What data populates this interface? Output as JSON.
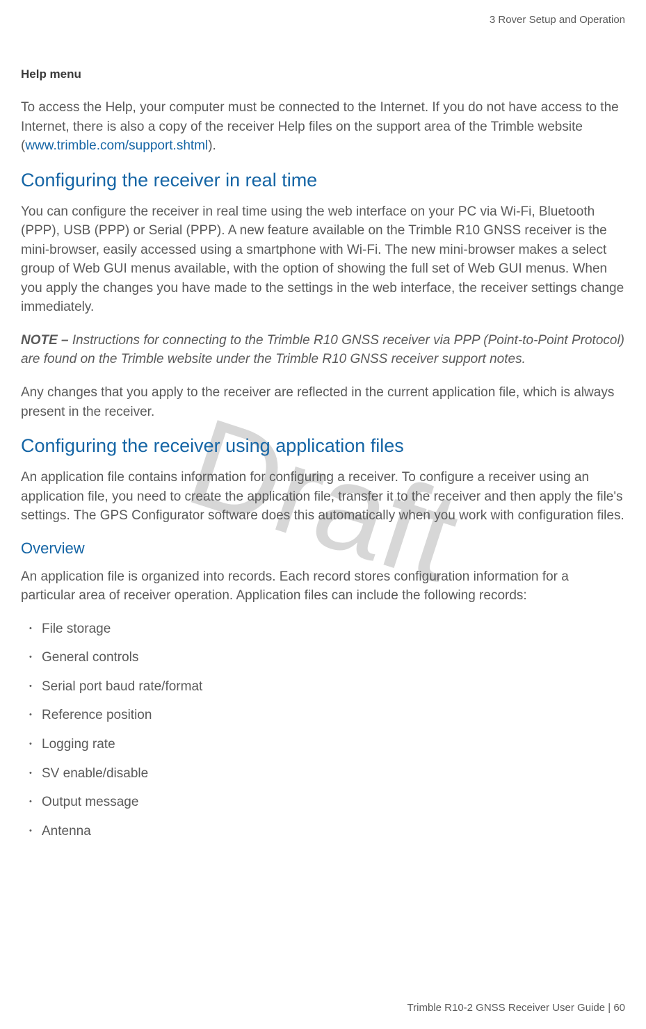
{
  "header": {
    "chapter": "3   Rover Setup and Operation"
  },
  "watermark": "Draft",
  "sections": {
    "helpMenu": {
      "title": "Help menu",
      "para1_a": "To access the Help, your computer must be connected to the Internet. If you do not have access to the Internet, there is also a copy of the receiver Help files on the support area of the Trimble website (",
      "link": "www.trimble.com/support.shtml",
      "para1_b": ")."
    },
    "configRealTime": {
      "title": "Configuring the receiver in real time",
      "para1": "You can configure the receiver in real time using the web interface on your PC via Wi-Fi, Bluetooth (PPP), USB (PPP) or Serial (PPP). A new feature available on the Trimble R10 GNSS receiver is the mini-browser, easily accessed using a smartphone with Wi-Fi. The new mini-browser makes a select group of Web GUI menus available, with the option of showing the full set of Web GUI menus. When you apply the changes you have made to the settings in the web interface, the receiver settings change immediately.",
      "noteLabel": "NOTE – ",
      "noteText": "Instructions for connecting to the Trimble R10 GNSS receiver via PPP (Point-to-Point Protocol) are found on the Trimble website under the Trimble R10 GNSS receiver support notes.",
      "para2": "Any changes that you apply to the receiver are reflected in the current application file, which is always present in the receiver."
    },
    "configAppFiles": {
      "title": "Configuring the receiver using application files",
      "para1": "An application file contains information for configuring a receiver. To configure a receiver using an application file, you need to create the application file, transfer it to the receiver and then apply the file's settings. The GPS Configurator software does this automatically when you work with configuration files."
    },
    "overview": {
      "title": "Overview",
      "para1": "An application file is organized into records. Each record stores configuration information for a particular area of receiver operation. Application files can include the following records:",
      "bullets": [
        "File storage",
        "General controls",
        "Serial port baud rate/format",
        "Reference position",
        "Logging rate",
        "SV enable/disable",
        "Output message",
        "Antenna"
      ]
    }
  },
  "footer": {
    "text_a": "Trimble R10-2 GNSS Receiver User Guide | ",
    "pageNum": "60"
  },
  "colors": {
    "headingBlue": "#1565a5",
    "bodyGray": "#5a5a5a",
    "titleDark": "#3a3a3a",
    "watermarkGray": "rgba(140,140,140,0.35)",
    "background": "#ffffff"
  },
  "typography": {
    "bodyFontSize": 19,
    "heading2FontSize": 27,
    "heading3FontSize": 22,
    "sectionTitleFontSize": 17,
    "headerFontSize": 15,
    "footerFontSize": 15,
    "watermarkFontSize": 180
  }
}
